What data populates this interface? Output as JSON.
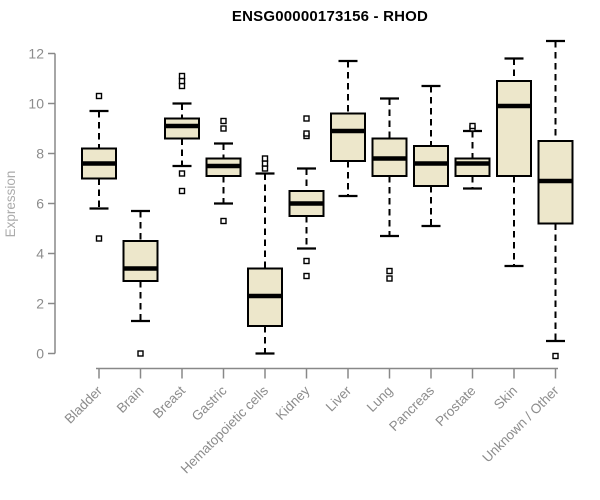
{
  "chart_data": {
    "type": "boxplot",
    "title": "ENSG00000173156 - RHOD",
    "ylabel": "Expression",
    "xlabel": "",
    "ylim": [
      0,
      12
    ],
    "yticks": [
      0,
      2,
      4,
      6,
      8,
      10,
      12
    ],
    "grid": false,
    "legend": false,
    "outlier_marker": "open-square",
    "colors": {
      "box_fill": "#EDE7CB",
      "box_stroke": "#000000",
      "median_stroke": "#000000",
      "whisker_stroke": "#000000",
      "axis_color": "#888888",
      "tick_label_color": "#8c8c8c",
      "ylabel_color": "#ababab",
      "title_color": "#000000",
      "background": "#ffffff"
    },
    "categories": [
      "Bladder",
      "Brain",
      "Breast",
      "Gastric",
      "Hematopoietic cells",
      "Kidney",
      "Liver",
      "Lung",
      "Pancreas",
      "Prostate",
      "Skin",
      "Unknown / Other"
    ],
    "series": [
      {
        "category": "Bladder",
        "whisker_low": 5.8,
        "q1": 7.0,
        "median": 7.6,
        "q3": 8.2,
        "whisker_high": 9.7,
        "outliers": [
          4.6,
          10.3
        ]
      },
      {
        "category": "Brain",
        "whisker_low": 1.3,
        "q1": 2.9,
        "median": 3.4,
        "q3": 4.5,
        "whisker_high": 5.7,
        "outliers": [
          0.0
        ]
      },
      {
        "category": "Breast",
        "whisker_low": 7.5,
        "q1": 8.6,
        "median": 9.1,
        "q3": 9.4,
        "whisker_high": 10.0,
        "outliers": [
          6.5,
          7.2,
          10.7,
          10.9,
          11.1
        ]
      },
      {
        "category": "Gastric",
        "whisker_low": 6.0,
        "q1": 7.1,
        "median": 7.5,
        "q3": 7.8,
        "whisker_high": 8.4,
        "outliers": [
          5.3,
          9.0,
          9.3
        ]
      },
      {
        "category": "Hematopoietic cells",
        "whisker_low": 0.0,
        "q1": 1.1,
        "median": 2.3,
        "q3": 3.4,
        "whisker_high": 7.2,
        "outliers": [
          7.4,
          7.6,
          7.8
        ]
      },
      {
        "category": "Kidney",
        "whisker_low": 4.2,
        "q1": 5.5,
        "median": 6.0,
        "q3": 6.5,
        "whisker_high": 7.4,
        "outliers": [
          3.1,
          3.7,
          8.7,
          8.8,
          9.4
        ]
      },
      {
        "category": "Liver",
        "whisker_low": 6.3,
        "q1": 7.7,
        "median": 8.9,
        "q3": 9.6,
        "whisker_high": 11.7,
        "outliers": []
      },
      {
        "category": "Lung",
        "whisker_low": 4.7,
        "q1": 7.1,
        "median": 7.8,
        "q3": 8.6,
        "whisker_high": 10.2,
        "outliers": [
          3.0,
          3.3
        ]
      },
      {
        "category": "Pancreas",
        "whisker_low": 5.1,
        "q1": 6.7,
        "median": 7.6,
        "q3": 8.3,
        "whisker_high": 10.7,
        "outliers": []
      },
      {
        "category": "Prostate",
        "whisker_low": 6.6,
        "q1": 7.1,
        "median": 7.6,
        "q3": 7.8,
        "whisker_high": 8.9,
        "outliers": [
          9.0,
          9.1
        ]
      },
      {
        "category": "Skin",
        "whisker_low": 3.5,
        "q1": 7.1,
        "median": 9.9,
        "q3": 10.9,
        "whisker_high": 11.8,
        "outliers": []
      },
      {
        "category": "Unknown / Other",
        "whisker_low": 0.5,
        "q1": 5.2,
        "median": 6.9,
        "q3": 8.5,
        "whisker_high": 12.5,
        "outliers": [
          -0.1
        ]
      }
    ]
  }
}
